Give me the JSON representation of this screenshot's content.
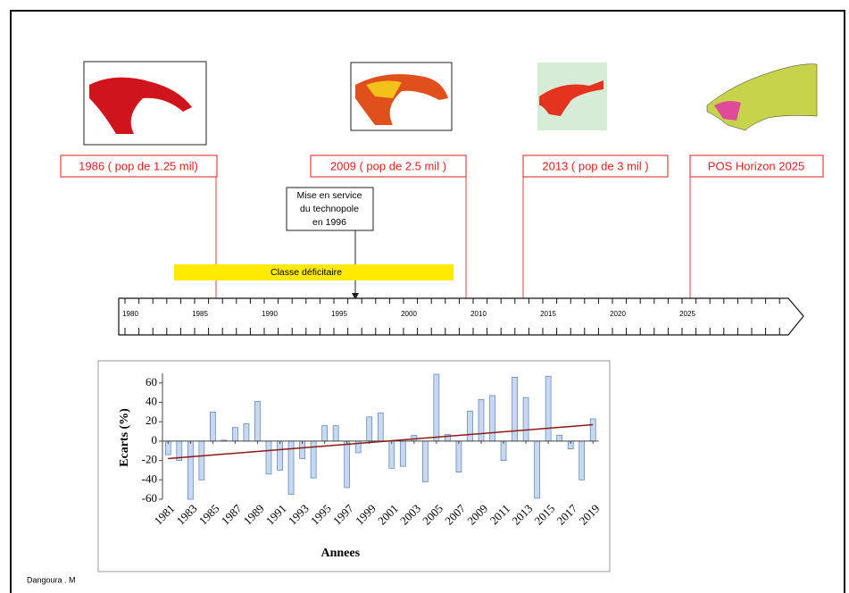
{
  "timeline": {
    "milestones": [
      "1986 ( pop de 1.25 mil)",
      "2009 ( pop de 2.5 mil )",
      "2013 ( pop de 3 mil )",
      "POS Horizon 2025"
    ],
    "callout": [
      "Mise en service",
      "du technopole",
      "en 1996"
    ],
    "band": "Classe déficitaire",
    "axis_labels": [
      "1980",
      "1985",
      "1990",
      "1995",
      "2000",
      "2010",
      "2015",
      "2020",
      "2025"
    ]
  },
  "credit": "Dangoura . M",
  "chart_data": {
    "type": "bar",
    "xlabel": "Annees",
    "ylabel": "Ecarts (%)",
    "x": [
      1981,
      1982,
      1983,
      1984,
      1985,
      1986,
      1987,
      1988,
      1989,
      1990,
      1991,
      1992,
      1993,
      1994,
      1995,
      1996,
      1997,
      1998,
      1999,
      2000,
      2001,
      2002,
      2003,
      2004,
      2005,
      2006,
      2007,
      2008,
      2009,
      2010,
      2011,
      2012,
      2013,
      2014,
      2015,
      2016,
      2017,
      2018,
      2019
    ],
    "values": [
      -14,
      -20,
      -60,
      -40,
      30,
      1,
      14,
      18,
      41,
      -34,
      -30,
      -55,
      -18,
      -38,
      16,
      16,
      -48,
      -12,
      25,
      29,
      -28,
      -26,
      6,
      -42,
      69,
      7,
      -32,
      31,
      43,
      47,
      -20,
      66,
      45,
      -59,
      67,
      6,
      -8,
      -40,
      23
    ],
    "color": "#c6d9f1",
    "trend": {
      "x": [
        1981,
        2019
      ],
      "values": [
        -18,
        17
      ],
      "color": "#8b1a1a"
    },
    "xlim": [
      1980.5,
      2019.5
    ],
    "xticks": [
      1981,
      1983,
      1985,
      1987,
      1989,
      1991,
      1993,
      1995,
      1997,
      1999,
      2001,
      2003,
      2005,
      2007,
      2009,
      2011,
      2013,
      2015,
      2017,
      2019
    ],
    "ylim": [
      -60,
      70
    ],
    "yticks": [
      -60,
      -40,
      -20,
      0,
      20,
      40,
      60
    ]
  }
}
